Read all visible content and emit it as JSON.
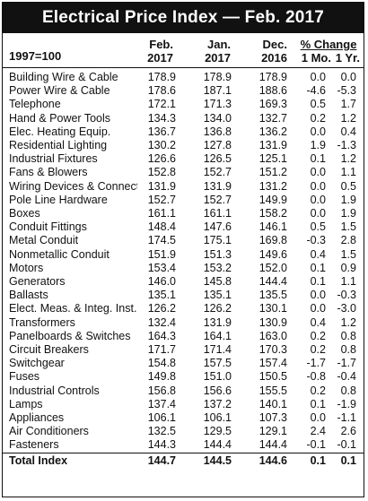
{
  "title": "Electrical Price Index — Feb. 2017",
  "header": {
    "base": "1997=100",
    "feb_l1": "Feb.",
    "feb_l2": "2017",
    "jan_l1": "Jan.",
    "jan_l2": "2017",
    "dec_l1": "Dec.",
    "dec_l2": "2016",
    "pct_change": "% Change",
    "mo": "1 Mo.",
    "yr": "1 Yr."
  },
  "rows": [
    {
      "name": "Building Wire & Cable",
      "feb": "178.9",
      "jan": "178.9",
      "dec": "178.9",
      "mo": "0.0",
      "yr": "0.0"
    },
    {
      "name": "Power Wire & Cable",
      "feb": "178.6",
      "jan": "187.1",
      "dec": "188.6",
      "mo": "-4.6",
      "yr": "-5.3"
    },
    {
      "name": "Telephone",
      "feb": "172.1",
      "jan": "171.3",
      "dec": "169.3",
      "mo": "0.5",
      "yr": "1.7"
    },
    {
      "name": "Hand & Power Tools",
      "feb": "134.3",
      "jan": "134.0",
      "dec": "132.7",
      "mo": "0.2",
      "yr": "1.2"
    },
    {
      "name": "Elec. Heating Equip.",
      "feb": "136.7",
      "jan": "136.8",
      "dec": "136.2",
      "mo": "0.0",
      "yr": "0.4"
    },
    {
      "name": "Residential Lighting",
      "feb": "130.2",
      "jan": "127.8",
      "dec": "131.9",
      "mo": "1.9",
      "yr": "-1.3"
    },
    {
      "name": "Industrial Fixtures",
      "feb": "126.6",
      "jan": "126.5",
      "dec": "125.1",
      "mo": "0.1",
      "yr": "1.2"
    },
    {
      "name": "Fans & Blowers",
      "feb": "152.8",
      "jan": "152.7",
      "dec": "151.2",
      "mo": "0.0",
      "yr": "1.1"
    },
    {
      "name": "Wiring Devices & Connectors",
      "feb": "131.9",
      "jan": "131.9",
      "dec": "131.2",
      "mo": "0.0",
      "yr": "0.5"
    },
    {
      "name": "Pole Line Hardware",
      "feb": "152.7",
      "jan": "152.7",
      "dec": "149.9",
      "mo": "0.0",
      "yr": "1.9"
    },
    {
      "name": "Boxes",
      "feb": "161.1",
      "jan": "161.1",
      "dec": "158.2",
      "mo": "0.0",
      "yr": "1.9"
    },
    {
      "name": "Conduit Fittings",
      "feb": "148.4",
      "jan": "147.6",
      "dec": "146.1",
      "mo": "0.5",
      "yr": "1.5"
    },
    {
      "name": "Metal Conduit",
      "feb": "174.5",
      "jan": "175.1",
      "dec": "169.8",
      "mo": "-0.3",
      "yr": "2.8"
    },
    {
      "name": "Nonmetallic Conduit",
      "feb": "151.9",
      "jan": "151.3",
      "dec": "149.6",
      "mo": "0.4",
      "yr": "1.5"
    },
    {
      "name": "Motors",
      "feb": "153.4",
      "jan": "153.2",
      "dec": "152.0",
      "mo": "0.1",
      "yr": "0.9"
    },
    {
      "name": "Generators",
      "feb": "146.0",
      "jan": "145.8",
      "dec": "144.4",
      "mo": "0.1",
      "yr": "1.1"
    },
    {
      "name": "Ballasts",
      "feb": "135.1",
      "jan": "135.1",
      "dec": "135.5",
      "mo": "0.0",
      "yr": "-0.3"
    },
    {
      "name": "Elect. Meas. & Integ. Inst.",
      "feb": "126.2",
      "jan": "126.2",
      "dec": "130.1",
      "mo": "0.0",
      "yr": "-3.0"
    },
    {
      "name": "Transformers",
      "feb": "132.4",
      "jan": "131.9",
      "dec": "130.9",
      "mo": "0.4",
      "yr": "1.2"
    },
    {
      "name": "Panelboards & Switches",
      "feb": "164.3",
      "jan": "164.1",
      "dec": "163.0",
      "mo": "0.2",
      "yr": "0.8"
    },
    {
      "name": "Circuit Breakers",
      "feb": "171.7",
      "jan": "171.4",
      "dec": "170.3",
      "mo": "0.2",
      "yr": "0.8"
    },
    {
      "name": "Switchgear",
      "feb": "154.8",
      "jan": "157.5",
      "dec": "157.4",
      "mo": "-1.7",
      "yr": "-1.7"
    },
    {
      "name": "Fuses",
      "feb": "149.8",
      "jan": "151.0",
      "dec": "150.5",
      "mo": "-0.8",
      "yr": "-0.4"
    },
    {
      "name": "Industrial Controls",
      "feb": "156.8",
      "jan": "156.6",
      "dec": "155.5",
      "mo": "0.2",
      "yr": "0.8"
    },
    {
      "name": "Lamps",
      "feb": "137.4",
      "jan": "137.2",
      "dec": "140.1",
      "mo": "0.1",
      "yr": "-1.9"
    },
    {
      "name": "Appliances",
      "feb": "106.1",
      "jan": "106.1",
      "dec": "107.3",
      "mo": "0.0",
      "yr": "-1.1"
    },
    {
      "name": "Air Conditioners",
      "feb": "132.5",
      "jan": "129.5",
      "dec": "129.1",
      "mo": "2.4",
      "yr": "2.6"
    },
    {
      "name": "Fasteners",
      "feb": "144.3",
      "jan": "144.4",
      "dec": "144.4",
      "mo": "-0.1",
      "yr": "-0.1"
    }
  ],
  "total": {
    "name": "Total Index",
    "feb": "144.7",
    "jan": "144.5",
    "dec": "144.6",
    "mo": "0.1",
    "yr": "0.1"
  }
}
